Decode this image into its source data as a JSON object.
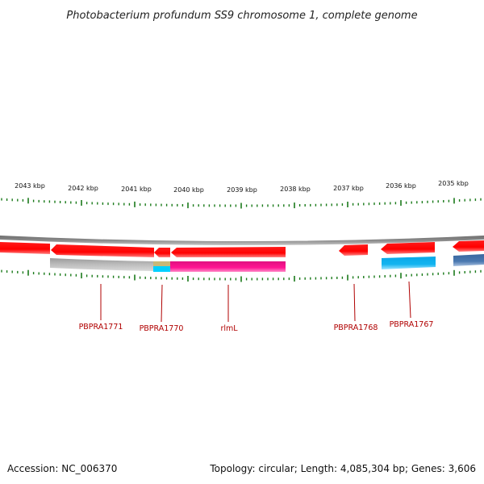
{
  "title": "Photobacterium profundum SS9 chromosome 1, complete genome",
  "scale": {
    "labels": [
      "2043 kbp",
      "2042 kbp",
      "2041 kbp",
      "2040 kbp",
      "2039 kbp",
      "2038 kbp",
      "2037 kbp",
      "2036 kbp",
      "2035 kbp"
    ]
  },
  "genes": [
    {
      "label": "PBPRA1771"
    },
    {
      "label": "PBPRA1770"
    },
    {
      "label": "rlmL"
    },
    {
      "label": "PBPRA1768"
    },
    {
      "label": "PBPRA1767"
    }
  ],
  "colors": {
    "backbone": "#8a8a8a",
    "cds": "#ff0000",
    "tick": "#1a7a1a",
    "label_text": "#b00000",
    "feature_gray": "#b8b8b8",
    "feature_olive": "#c8b878",
    "feature_cyan": "#00c8ff",
    "feature_magenta": "#ff1493",
    "feature_blue": "#12b4f0",
    "feature_steel": "#4a78b0"
  },
  "footer": {
    "accession": "Accession: NC_006370",
    "summary": "Topology: circular; Length: 4,085,304 bp; Genes: 3,606"
  }
}
